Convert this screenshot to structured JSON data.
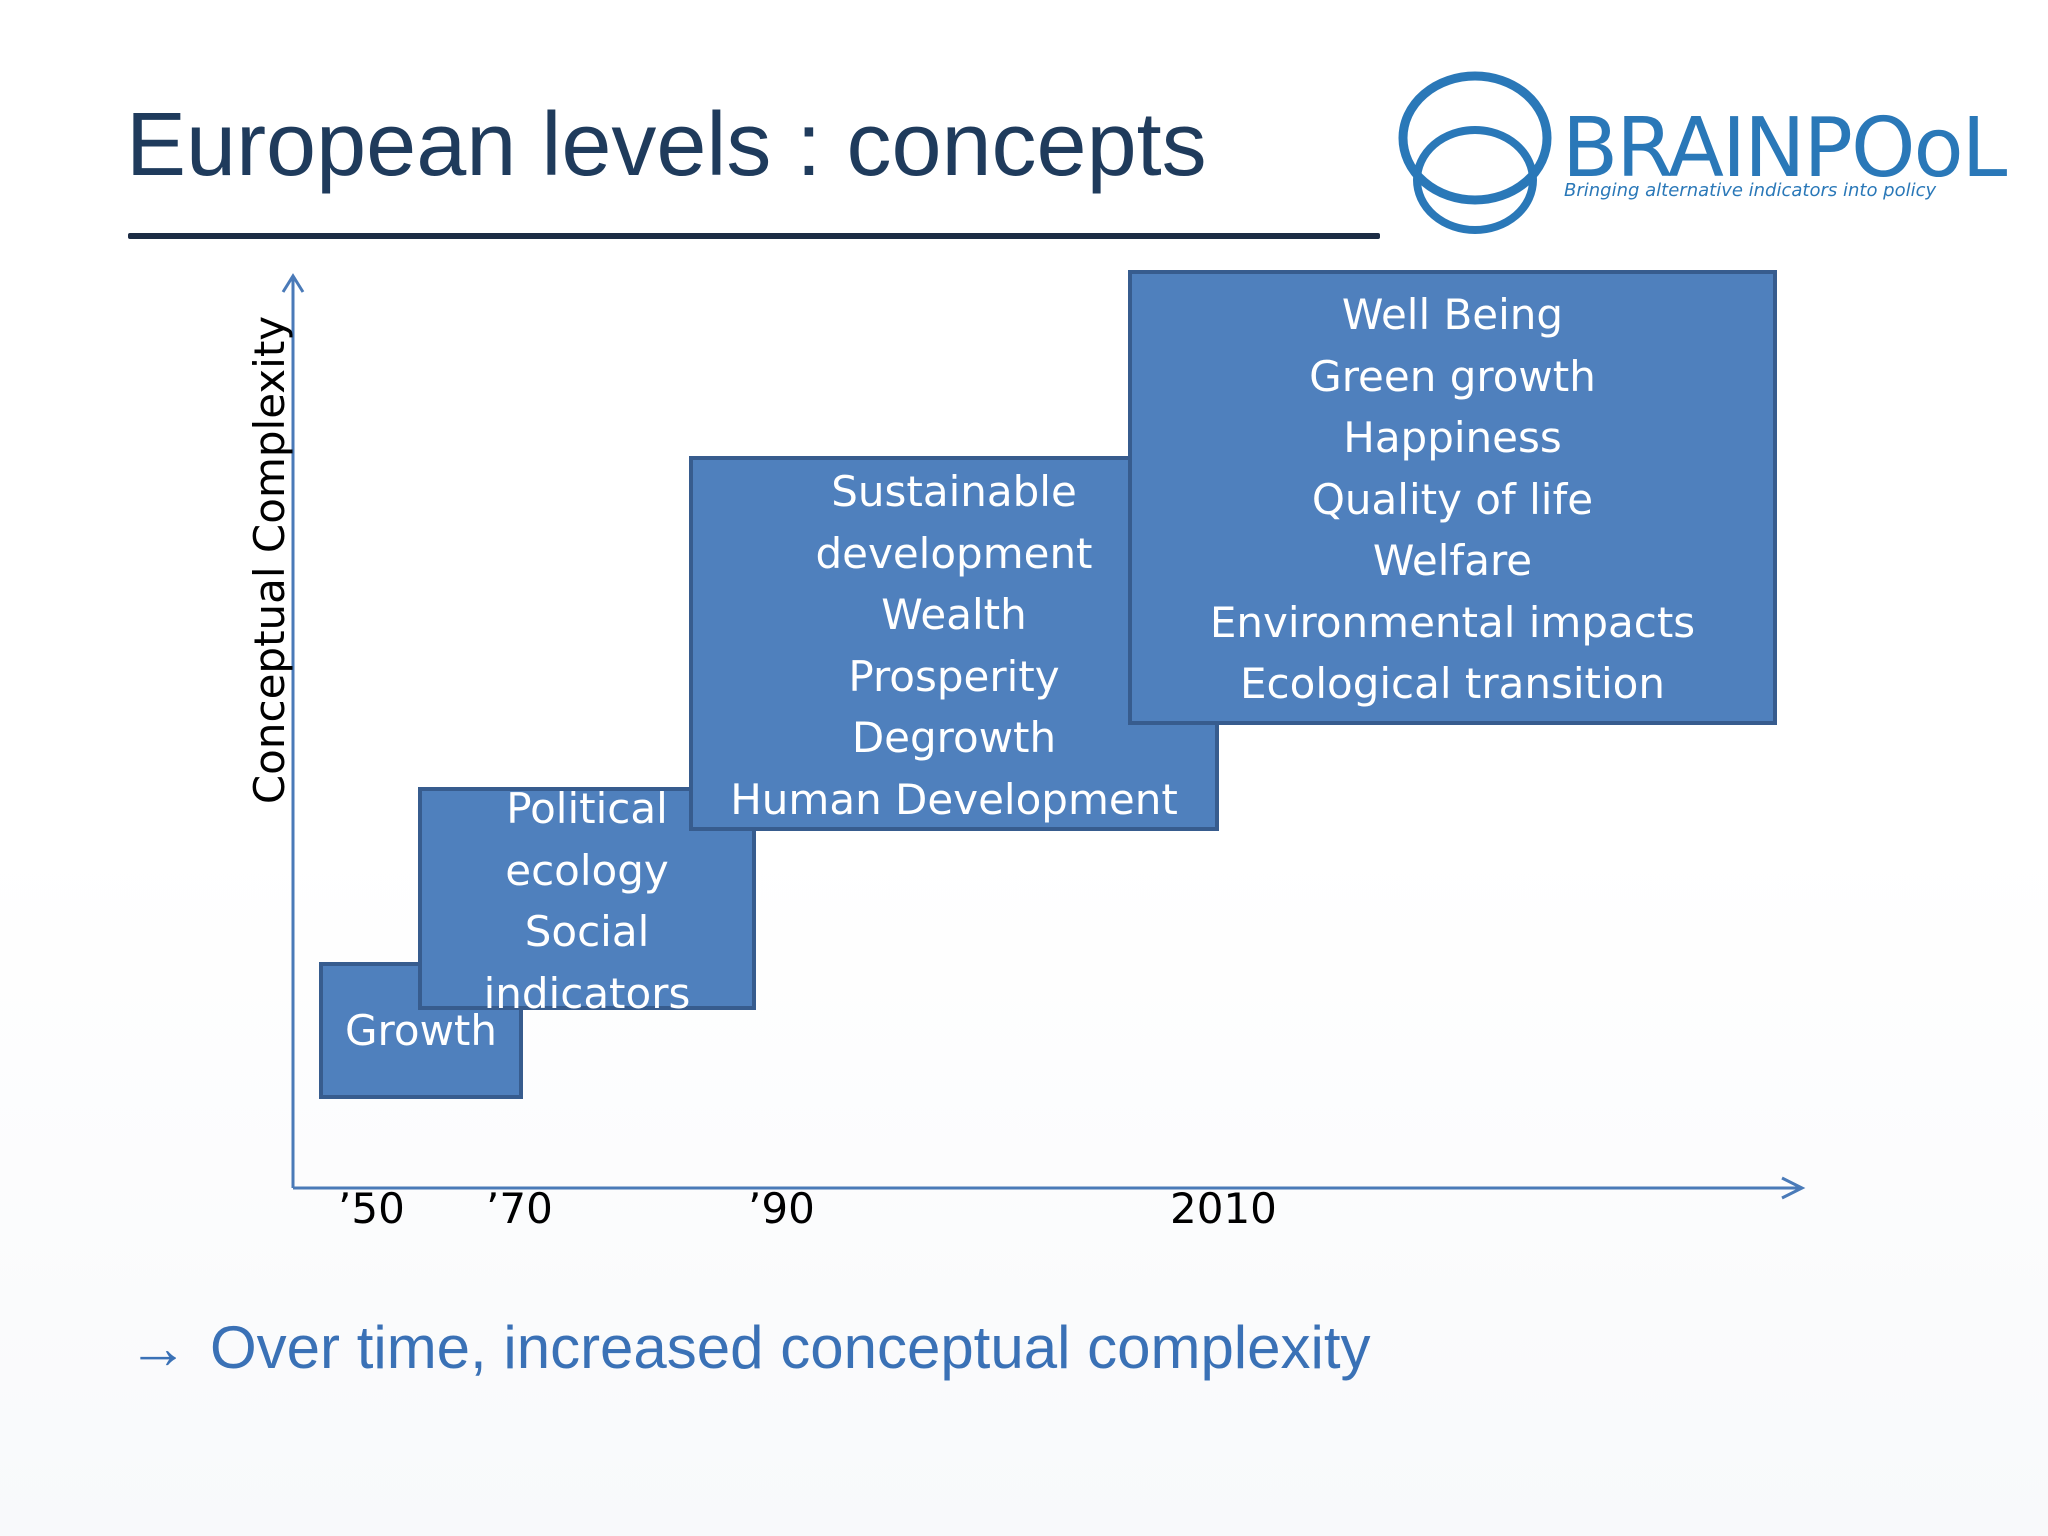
{
  "slide": {
    "title": "European levels : concepts",
    "conclusion_arrow": "→",
    "conclusion_text": "Over time, increased conceptual complexity"
  },
  "logo": {
    "name": "BRAINPOoL",
    "tagline": "Bringing alternative indicators into policy",
    "color": "#2a78b8"
  },
  "diagram": {
    "y_axis_label": "Conceptual Complexity",
    "x_ticks": [
      "’50",
      "’70",
      "’90",
      "2010"
    ],
    "box_color": "#4f80bd",
    "box_border_color": "#375c8e",
    "boxes": [
      {
        "id": "growth",
        "lines": [
          "Growth"
        ]
      },
      {
        "id": "political",
        "lines": [
          "Political",
          "ecology",
          "Social",
          "indicators"
        ]
      },
      {
        "id": "sustainable",
        "lines": [
          "Sustainable",
          "development",
          "Wealth",
          "Prosperity",
          "Degrowth",
          "Human Development"
        ]
      },
      {
        "id": "wellbeing",
        "lines": [
          "Well Being",
          "Green growth",
          "Happiness",
          "Quality of life",
          "Welfare",
          "Environmental impacts",
          "Ecological transition"
        ]
      }
    ]
  }
}
